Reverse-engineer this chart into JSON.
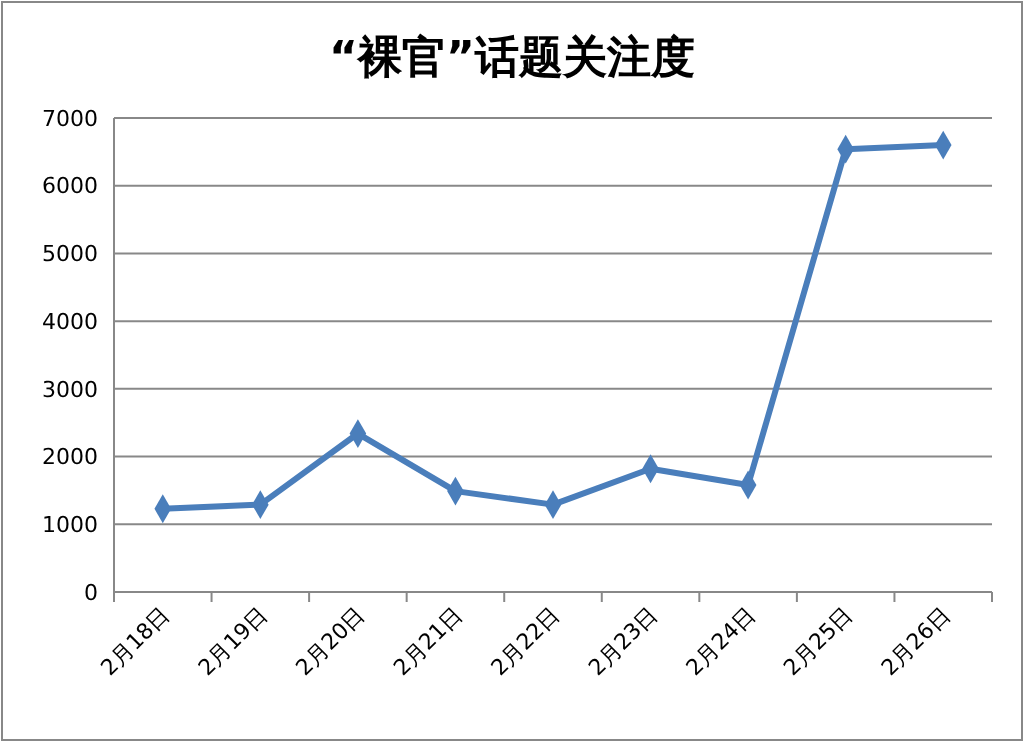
{
  "chart_data": {
    "type": "line",
    "title": "“裸官”话题关注度",
    "categories": [
      "2月18日",
      "2月19日",
      "2月20日",
      "2月21日",
      "2月22日",
      "2月23日",
      "2月24日",
      "2月25日",
      "2月26日"
    ],
    "series": [
      {
        "color": "#4a7ebb",
        "values": [
          1230,
          1290,
          2340,
          1490,
          1290,
          1820,
          1580,
          6540,
          6600
        ]
      }
    ],
    "ylim": [
      0,
      7000
    ],
    "yticks": [
      0,
      1000,
      2000,
      3000,
      4000,
      5000,
      6000,
      7000
    ],
    "grid": "y",
    "marker": "diamond",
    "line_style": "solid"
  }
}
